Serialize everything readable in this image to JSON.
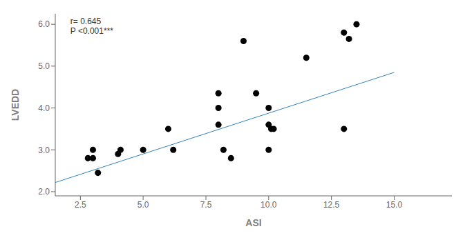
{
  "chart_data": {
    "type": "scatter",
    "xlabel": "ASI",
    "ylabel": "LVEDD",
    "series": [
      {
        "type": "scatter",
        "x": [
          2.8,
          3.0,
          3.0,
          3.2,
          4.0,
          4.1,
          5.0,
          6.0,
          6.2,
          8.0,
          8.0,
          8.0,
          8.2,
          8.5,
          9.0,
          9.5,
          10.0,
          10.0,
          10.0,
          10.1,
          10.2,
          11.5,
          13.0,
          13.0,
          13.2,
          13.5
        ],
        "values": [
          2.8,
          3.0,
          2.8,
          2.45,
          2.9,
          3.0,
          3.0,
          3.5,
          3.0,
          4.35,
          4.0,
          3.6,
          3.0,
          2.8,
          5.6,
          4.35,
          4.0,
          3.0,
          3.6,
          3.5,
          3.5,
          5.2,
          5.8,
          3.5,
          5.65,
          6.0
        ]
      },
      {
        "type": "line",
        "x": [
          1.5,
          15.0
        ],
        "values": [
          2.22,
          4.85
        ]
      }
    ],
    "annotations": [
      {
        "text": "r= 0.645\nP <0.001***",
        "x": 2.1,
        "y": 6.18
      }
    ],
    "xlim": [
      1.5,
      17.3
    ],
    "ylim": [
      1.9,
      6.25
    ],
    "xticks": [
      2.5,
      {
        "value": 5.0,
        "label": "5.0"
      },
      7.5,
      {
        "value": 10.0,
        "label": "10.0"
      },
      12.5,
      {
        "value": 15.0,
        "label": "15.0"
      }
    ],
    "yticks": [
      {
        "value": 2.0,
        "label": "2.0"
      },
      {
        "value": 3.0,
        "label": "3.0"
      },
      {
        "value": 4.0,
        "label": "4.0"
      },
      {
        "value": 5.0,
        "label": "5.0"
      },
      {
        "value": 6.0,
        "label": "6.0"
      }
    ]
  }
}
